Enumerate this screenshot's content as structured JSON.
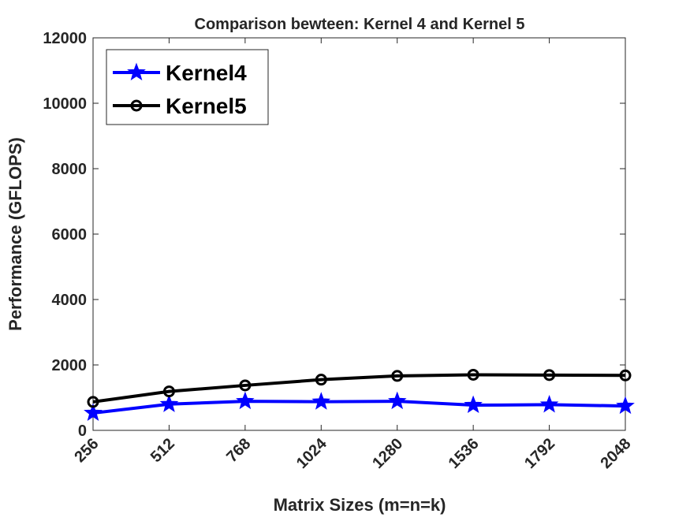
{
  "chart_data": {
    "type": "line",
    "title": "Comparison bewteen: Kernel 4 and Kernel 5",
    "xlabel": "Matrix Sizes (m=n=k)",
    "ylabel": "Performance (GFLOPS)",
    "categories": [
      "256",
      "512",
      "768",
      "1024",
      "1280",
      "1536",
      "1792",
      "2048"
    ],
    "ylim": [
      0,
      12000
    ],
    "yticks": [
      0,
      2000,
      4000,
      6000,
      8000,
      10000,
      12000
    ],
    "grid": false,
    "legend_position": "top-left",
    "series": [
      {
        "name": "Kernel4",
        "color": "#0000ff",
        "marker": "star",
        "values": [
          530,
          800,
          890,
          875,
          890,
          770,
          785,
          745
        ]
      },
      {
        "name": "Kernel5",
        "color": "#000000",
        "marker": "circle",
        "values": [
          870,
          1190,
          1375,
          1550,
          1665,
          1700,
          1690,
          1680
        ]
      }
    ]
  }
}
